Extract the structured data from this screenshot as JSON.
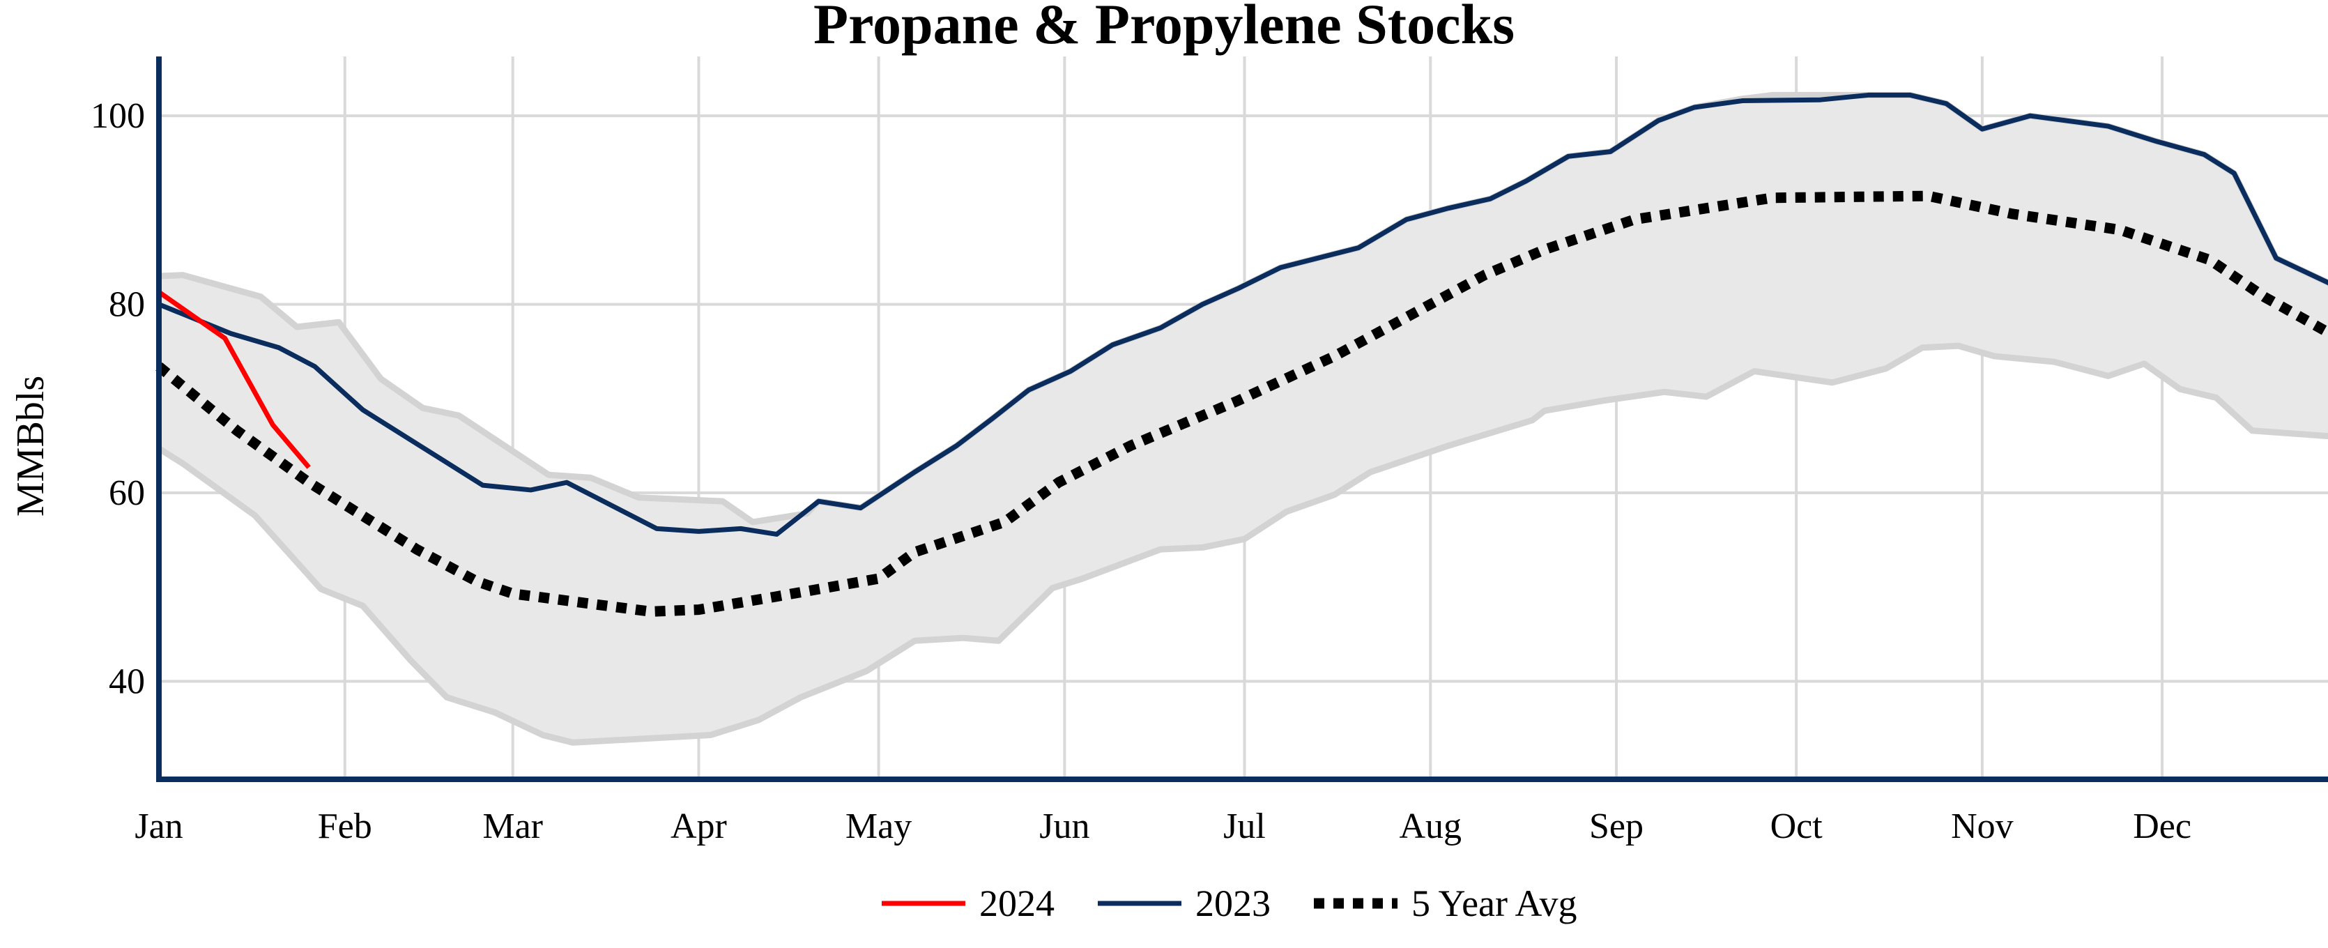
{
  "chart_data": {
    "type": "line",
    "title": "Propane & Propylene Stocks",
    "xlabel": "",
    "ylabel": "MMBbls",
    "x_tick_labels": [
      "Jan",
      "Feb",
      "Mar",
      "Apr",
      "May",
      "Jun",
      "Jul",
      "Aug",
      "Sep",
      "Oct",
      "Nov",
      "Dec"
    ],
    "y_ticks": [
      40,
      60,
      80,
      100
    ],
    "ylim": [
      29.6,
      106.3
    ],
    "xlim": [
      "01-01",
      "12-29"
    ],
    "grid": true,
    "legend_position": "bottom",
    "colors": {
      "s2024": "#ff0000",
      "s2023": "#0a2d5e",
      "avg": "#000000",
      "band_fill": "#e8e8e8",
      "band_edge": "#d3d3d3",
      "axis": "#0a2d5e",
      "grid": "#d9d9d9"
    },
    "band": {
      "upper": [
        [
          "01-01",
          83.0
        ],
        [
          "01-05",
          83.1
        ],
        [
          "01-18",
          80.8
        ],
        [
          "01-24",
          77.6
        ],
        [
          "01-31",
          78.1
        ],
        [
          "02-07",
          72.1
        ],
        [
          "02-14",
          69.0
        ],
        [
          "02-20",
          68.2
        ],
        [
          "03-07",
          61.9
        ],
        [
          "03-14",
          61.6
        ],
        [
          "03-22",
          59.5
        ],
        [
          "04-05",
          59.1
        ],
        [
          "04-10",
          56.9
        ],
        [
          "04-19",
          57.8
        ],
        [
          "04-21",
          59.1
        ],
        [
          "04-28",
          58.4
        ],
        [
          "05-07",
          62.2
        ],
        [
          "05-14",
          65.0
        ],
        [
          "05-20",
          67.9
        ],
        [
          "05-26",
          70.9
        ],
        [
          "06-02",
          72.9
        ],
        [
          "06-09",
          75.7
        ],
        [
          "06-17",
          77.5
        ],
        [
          "06-24",
          80.0
        ],
        [
          "06-30",
          81.7
        ],
        [
          "07-07",
          83.9
        ],
        [
          "07-20",
          86.0
        ],
        [
          "07-28",
          89.0
        ],
        [
          "08-04",
          90.2
        ],
        [
          "08-11",
          91.2
        ],
        [
          "08-17",
          93.1
        ],
        [
          "08-24",
          95.7
        ],
        [
          "08-31",
          96.2
        ],
        [
          "09-08",
          99.5
        ],
        [
          "09-14",
          100.9
        ],
        [
          "09-22",
          101.8
        ],
        [
          "09-27",
          102.2
        ],
        [
          "10-05",
          102.2
        ],
        [
          "10-13",
          102.2
        ],
        [
          "10-20",
          102.2
        ],
        [
          "10-26",
          101.3
        ],
        [
          "11-01",
          98.6
        ],
        [
          "11-09",
          100.0
        ],
        [
          "11-22",
          98.9
        ],
        [
          "11-30",
          97.3
        ],
        [
          "12-08",
          95.9
        ],
        [
          "12-13",
          93.9
        ],
        [
          "12-20",
          84.9
        ],
        [
          "12-29",
          82.2
        ]
      ],
      "lower": [
        [
          "01-01",
          64.7
        ],
        [
          "01-05",
          63.1
        ],
        [
          "01-17",
          57.6
        ],
        [
          "01-28",
          49.8
        ],
        [
          "02-04",
          48.0
        ],
        [
          "02-12",
          42.2
        ],
        [
          "02-18",
          38.3
        ],
        [
          "02-26",
          36.7
        ],
        [
          "03-06",
          34.3
        ],
        [
          "03-11",
          33.5
        ],
        [
          "04-03",
          34.3
        ],
        [
          "04-11",
          35.9
        ],
        [
          "04-18",
          38.3
        ],
        [
          "04-29",
          41.1
        ],
        [
          "05-07",
          44.3
        ],
        [
          "05-15",
          44.6
        ],
        [
          "05-21",
          44.3
        ],
        [
          "05-30",
          49.9
        ],
        [
          "06-04",
          50.9
        ],
        [
          "06-17",
          54.0
        ],
        [
          "06-24",
          54.2
        ],
        [
          "07-01",
          55.1
        ],
        [
          "07-08",
          58.0
        ],
        [
          "07-16",
          59.8
        ],
        [
          "07-22",
          62.2
        ],
        [
          "08-04",
          65.0
        ],
        [
          "08-18",
          67.7
        ],
        [
          "08-20",
          68.7
        ],
        [
          "08-30",
          69.8
        ],
        [
          "09-09",
          70.7
        ],
        [
          "09-16",
          70.2
        ],
        [
          "09-24",
          72.9
        ],
        [
          "10-07",
          71.7
        ],
        [
          "10-16",
          73.2
        ],
        [
          "10-22",
          75.4
        ],
        [
          "10-28",
          75.6
        ],
        [
          "11-03",
          74.5
        ],
        [
          "11-13",
          73.9
        ],
        [
          "11-22",
          72.4
        ],
        [
          "11-28",
          73.7
        ],
        [
          "12-04",
          71.0
        ],
        [
          "12-10",
          70.1
        ],
        [
          "12-16",
          66.6
        ],
        [
          "12-29",
          66.0
        ]
      ]
    },
    "series": [
      {
        "name": "2024",
        "color": "#ff0000",
        "style": "solid",
        "points": [
          [
            "01-01",
            81.3
          ],
          [
            "01-12",
            76.4
          ],
          [
            "01-20",
            67.2
          ],
          [
            "01-26",
            62.7
          ]
        ]
      },
      {
        "name": "2023",
        "color": "#0a2d5e",
        "style": "solid",
        "points": [
          [
            "01-01",
            80.0
          ],
          [
            "01-13",
            76.9
          ],
          [
            "01-21",
            75.4
          ],
          [
            "01-27",
            73.4
          ],
          [
            "02-04",
            68.8
          ],
          [
            "02-24",
            60.8
          ],
          [
            "03-04",
            60.3
          ],
          [
            "03-10",
            61.1
          ],
          [
            "03-25",
            56.2
          ],
          [
            "04-01",
            55.9
          ],
          [
            "04-08",
            56.2
          ],
          [
            "04-14",
            55.6
          ],
          [
            "04-21",
            59.1
          ],
          [
            "04-28",
            58.4
          ],
          [
            "05-07",
            62.2
          ],
          [
            "05-14",
            65.0
          ],
          [
            "05-20",
            67.9
          ],
          [
            "05-26",
            70.9
          ],
          [
            "06-02",
            72.9
          ],
          [
            "06-09",
            75.7
          ],
          [
            "06-17",
            77.5
          ],
          [
            "06-24",
            80.0
          ],
          [
            "06-30",
            81.7
          ],
          [
            "07-07",
            83.9
          ],
          [
            "07-20",
            86.0
          ],
          [
            "07-28",
            89.0
          ],
          [
            "08-04",
            90.2
          ],
          [
            "08-11",
            91.2
          ],
          [
            "08-17",
            93.1
          ],
          [
            "08-24",
            95.7
          ],
          [
            "08-31",
            96.2
          ],
          [
            "09-08",
            99.5
          ],
          [
            "09-14",
            100.9
          ],
          [
            "09-22",
            101.6
          ],
          [
            "10-05",
            101.7
          ],
          [
            "10-13",
            102.2
          ],
          [
            "10-20",
            102.2
          ],
          [
            "10-26",
            101.3
          ],
          [
            "11-01",
            98.6
          ],
          [
            "11-09",
            100.0
          ],
          [
            "11-22",
            98.9
          ],
          [
            "11-30",
            97.3
          ],
          [
            "12-08",
            95.9
          ],
          [
            "12-13",
            93.9
          ],
          [
            "12-20",
            84.9
          ],
          [
            "12-29",
            82.2
          ]
        ]
      },
      {
        "name": "5 Year Avg",
        "color": "#000000",
        "style": "dotted",
        "points": [
          [
            "01-01",
            73.4
          ],
          [
            "01-14",
            66.6
          ],
          [
            "01-26",
            61.1
          ],
          [
            "02-13",
            54.0
          ],
          [
            "02-23",
            50.6
          ],
          [
            "03-01",
            49.3
          ],
          [
            "03-24",
            47.4
          ],
          [
            "04-01",
            47.6
          ],
          [
            "04-14",
            49.0
          ],
          [
            "05-01",
            50.9
          ],
          [
            "05-07",
            53.7
          ],
          [
            "05-22",
            56.9
          ],
          [
            "05-31",
            61.1
          ],
          [
            "06-12",
            65.0
          ],
          [
            "06-30",
            69.8
          ],
          [
            "07-16",
            74.5
          ],
          [
            "08-10",
            83.1
          ],
          [
            "08-20",
            85.8
          ],
          [
            "09-04",
            89.0
          ],
          [
            "09-27",
            91.3
          ],
          [
            "10-23",
            91.5
          ],
          [
            "11-06",
            89.6
          ],
          [
            "11-24",
            87.9
          ],
          [
            "12-09",
            84.7
          ],
          [
            "12-18",
            80.8
          ],
          [
            "12-29",
            76.9
          ]
        ]
      }
    ]
  }
}
